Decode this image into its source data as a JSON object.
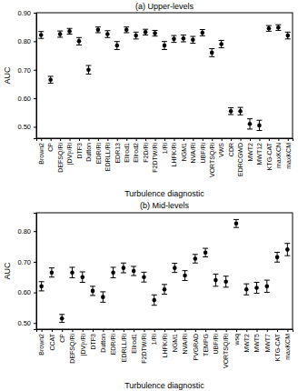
{
  "chart_data": [
    {
      "type": "scatter",
      "title": "(a) Upper-levels",
      "x_label": "Turbulence diagnostic",
      "y_label": "AUC",
      "marker": "circle",
      "color": "#000000",
      "categories": [
        "Brown2",
        "CP",
        "DEFSQ/Ri",
        "|DV|²/Ri",
        "DTF3",
        "Dutton",
        "EDR/Ri",
        "EDRLL/Ri",
        "EDR13",
        "Ellrod1",
        "Ellrod2",
        "F2D/Ri",
        "F2DTW/Ri",
        "1/Ri",
        "LHFK/Ri",
        "NGM1",
        "NVA/Ri",
        "UBF/Ri",
        "VORTSQ/Ri",
        "VWS",
        "CDR",
        "EDRCGWD",
        "MWT2",
        "MWT12",
        "KTG-CAT",
        "maxKCN",
        "maxKCM"
      ],
      "values": [
        0.822,
        0.665,
        0.825,
        0.835,
        0.8,
        0.7,
        0.84,
        0.825,
        0.785,
        0.84,
        0.82,
        0.832,
        0.828,
        0.785,
        0.808,
        0.81,
        0.805,
        0.83,
        0.76,
        0.79,
        0.555,
        0.555,
        0.51,
        0.505,
        0.845,
        0.848,
        0.82
      ],
      "errors": [
        0.012,
        0.012,
        0.011,
        0.01,
        0.013,
        0.015,
        0.01,
        0.012,
        0.014,
        0.01,
        0.012,
        0.01,
        0.01,
        0.014,
        0.012,
        0.012,
        0.012,
        0.011,
        0.014,
        0.013,
        0.012,
        0.013,
        0.018,
        0.018,
        0.01,
        0.01,
        0.012
      ],
      "ylim": [
        0.46,
        0.9
      ],
      "yticks": [
        {
          "value": 0.5,
          "label": "0.50"
        },
        {
          "value": 0.6,
          "label": "0.60"
        },
        {
          "value": 0.7,
          "label": "0.70"
        },
        {
          "value": 0.8,
          "label": "0.80"
        },
        {
          "value": 0.9,
          "label": "0.90"
        }
      ]
    },
    {
      "type": "scatter",
      "title": "(b) Mid-levels",
      "x_label": "Turbulence diagnostic",
      "y_label": "AUC",
      "marker": "circle",
      "color": "#000000",
      "categories": [
        "Brown2",
        "CCAT",
        "CP",
        "DEFSQ/Ri",
        "|DV|²/Ri",
        "DTF3",
        "Dutton",
        "EDR/Ri",
        "EDRLL/Ri",
        "Ellrod1",
        "F2DTW/Ri",
        "1/Ri",
        "LHFK/Ri",
        "NGM1",
        "NVA/Ri",
        "PVGRAD",
        "TEMPG",
        "UBF/Ri",
        "VORTSQ/Ri",
        "wsq",
        "MWT2",
        "MWT5",
        "MWT7",
        "KTG-CAT",
        "maxKCM"
      ],
      "values": [
        0.62,
        0.665,
        0.515,
        0.665,
        0.65,
        0.605,
        0.585,
        0.665,
        0.68,
        0.67,
        0.65,
        0.575,
        0.61,
        0.68,
        0.655,
        0.71,
        0.73,
        0.64,
        0.635,
        0.825,
        0.61,
        0.615,
        0.62,
        0.715,
        0.74
      ],
      "errors": [
        0.015,
        0.015,
        0.013,
        0.017,
        0.017,
        0.015,
        0.017,
        0.017,
        0.016,
        0.015,
        0.016,
        0.017,
        0.016,
        0.015,
        0.016,
        0.014,
        0.014,
        0.02,
        0.018,
        0.013,
        0.018,
        0.018,
        0.02,
        0.016,
        0.02
      ],
      "ylim": [
        0.48,
        0.86
      ],
      "yticks": [
        {
          "value": 0.5,
          "label": "0.50"
        },
        {
          "value": 0.6,
          "label": "0.60"
        },
        {
          "value": 0.7,
          "label": "0.70"
        },
        {
          "value": 0.8,
          "label": "0.80"
        }
      ]
    }
  ]
}
